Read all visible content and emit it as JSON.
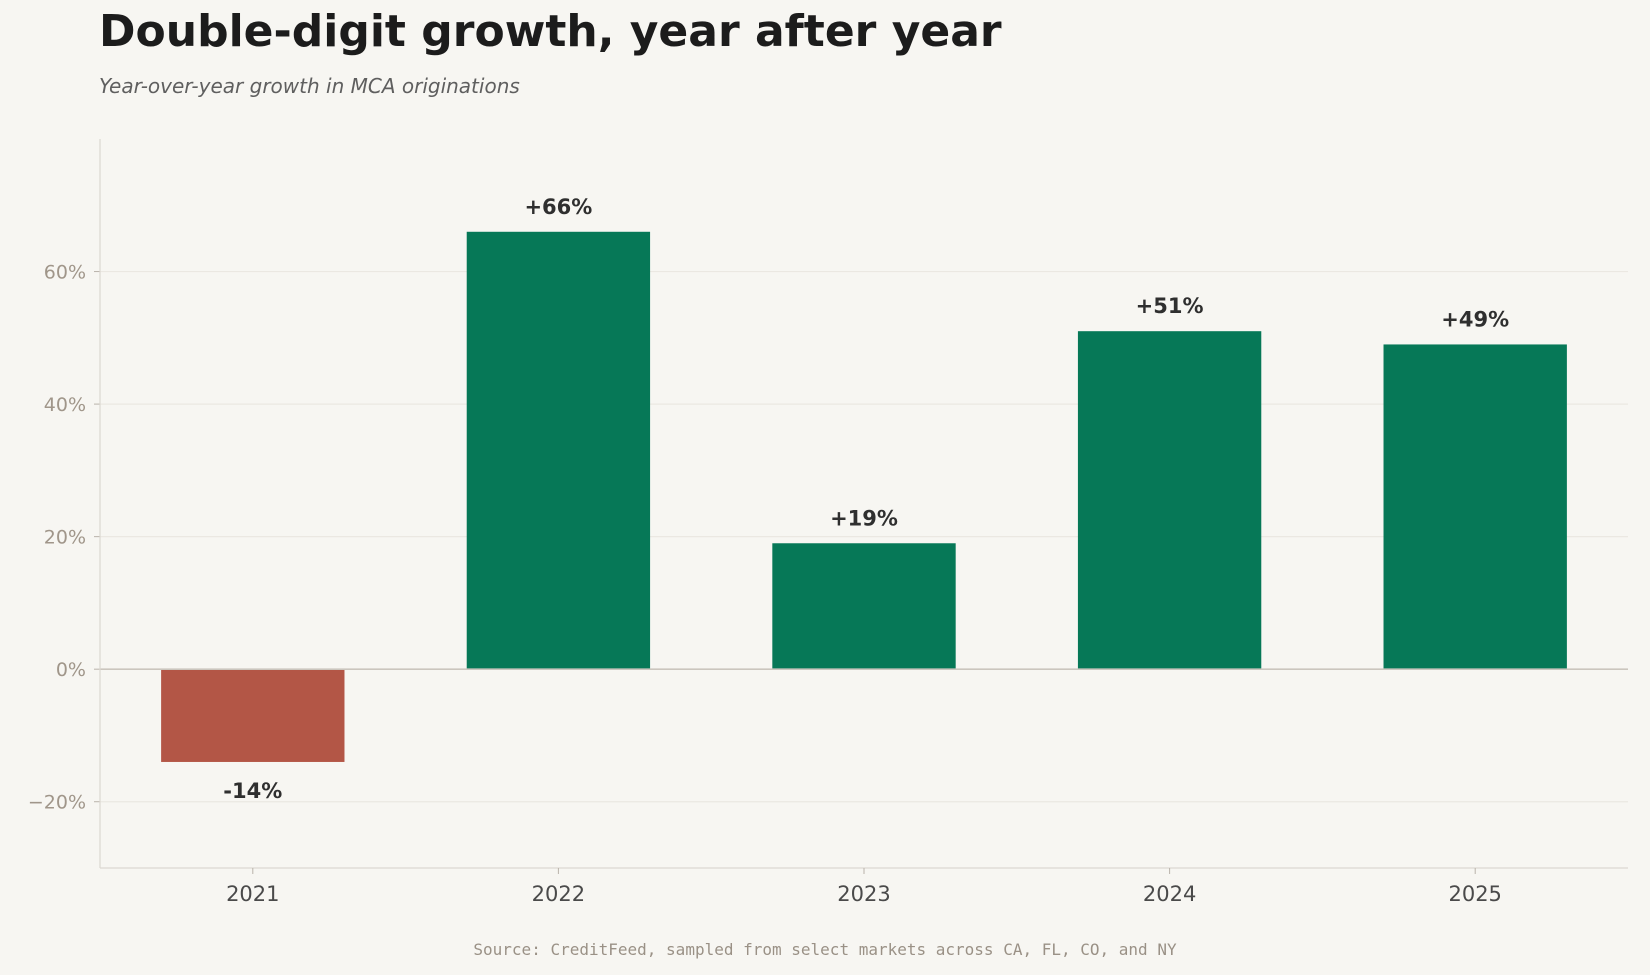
{
  "header": {
    "title": "Double-digit growth, year after year",
    "subtitle": "Year-over-year growth in MCA originations"
  },
  "footer": {
    "source": "Source: CreditFeed, sampled from select markets across CA, FL, CO, and NY"
  },
  "colors": {
    "positive": "#067857",
    "negative": "#b35646",
    "background": "#f7f6f2"
  },
  "chart_data": {
    "type": "bar",
    "title": "Double-digit growth, year after year",
    "subtitle": "Year-over-year growth in MCA originations",
    "xlabel": "",
    "ylabel": "",
    "categories": [
      "2021",
      "2022",
      "2023",
      "2024",
      "2025"
    ],
    "values": [
      -14,
      66,
      19,
      51,
      49
    ],
    "value_labels": [
      "-14%",
      "+66%",
      "+19%",
      "+51%",
      "+49%"
    ],
    "ylim": [
      -30,
      80
    ],
    "yticks": [
      -20,
      0,
      20,
      40,
      60
    ],
    "ytick_labels": [
      "−20%",
      "0%",
      "20%",
      "40%",
      "60%"
    ],
    "grid": "horizontal",
    "legend": "none"
  }
}
